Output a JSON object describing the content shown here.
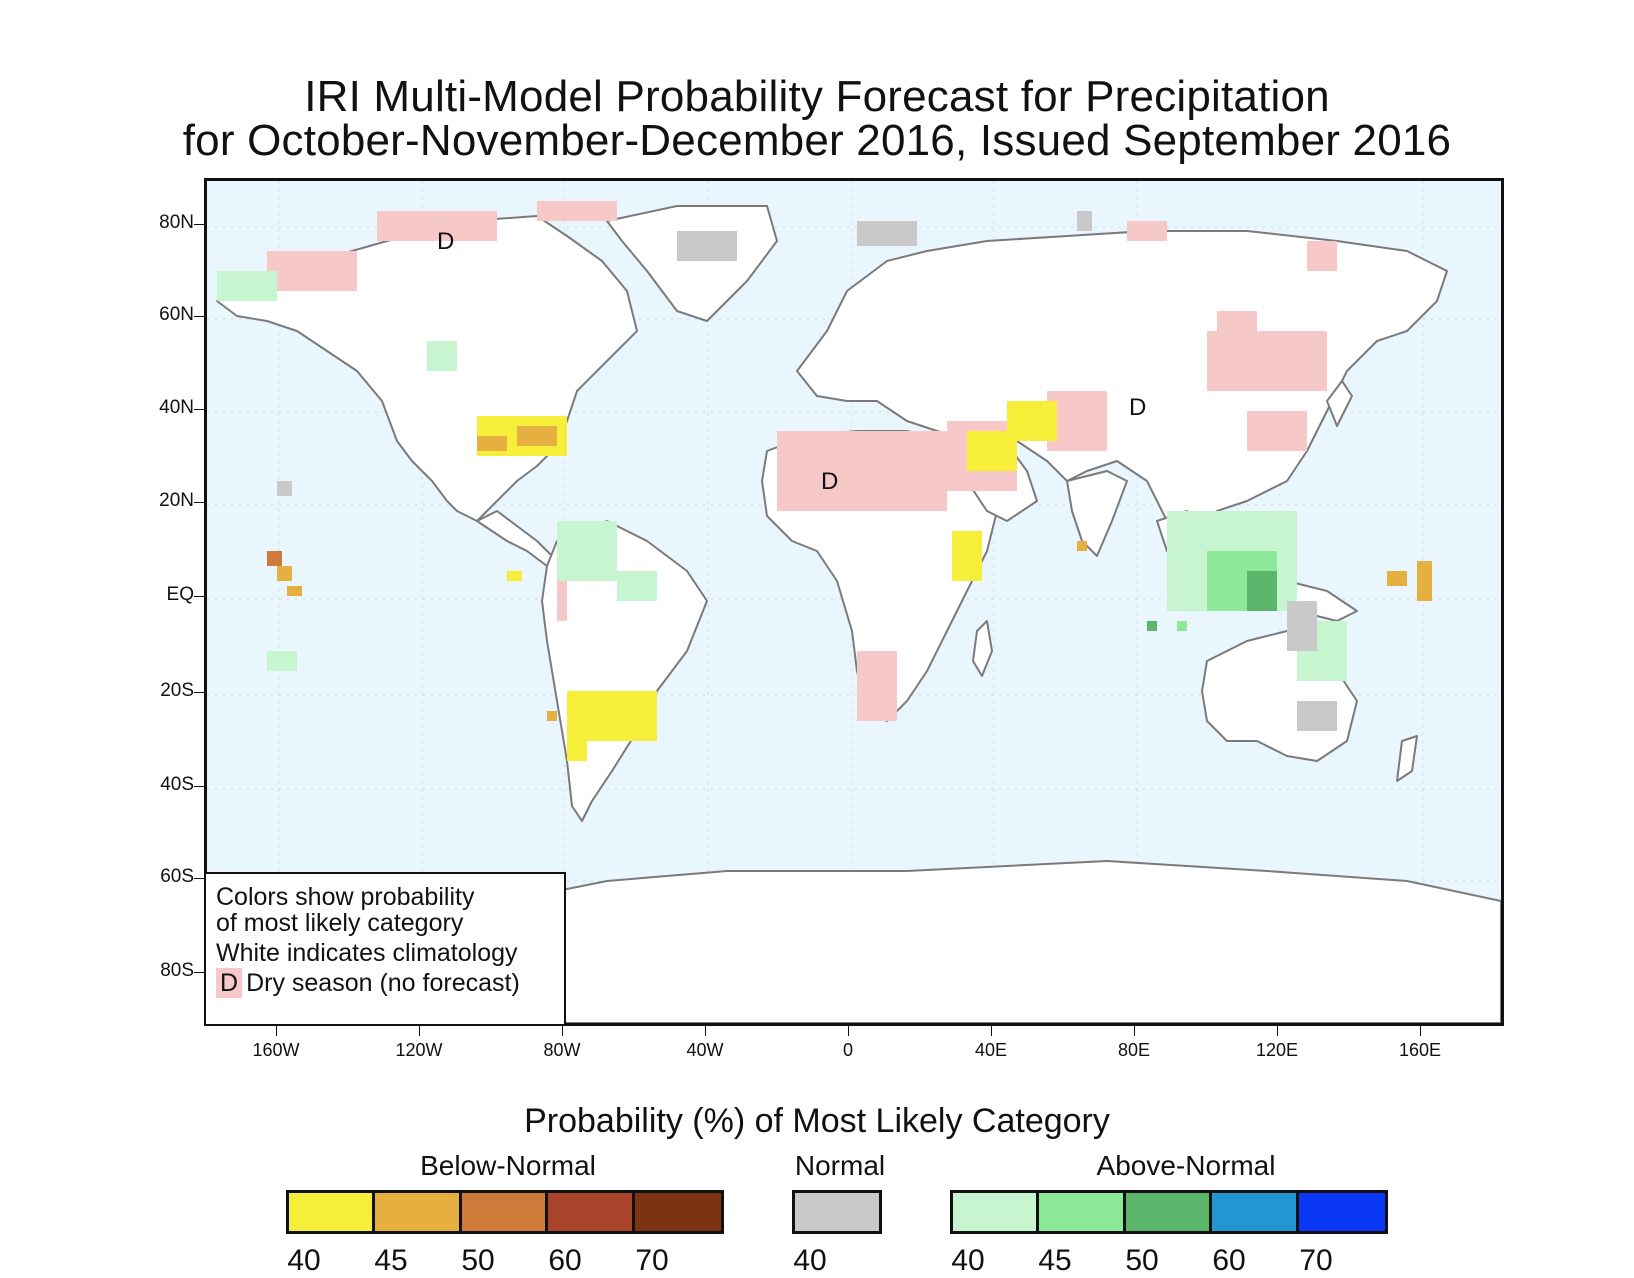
{
  "title": {
    "line1": "IRI Multi-Model Probability Forecast for Precipitation",
    "line2": "for October-November-December 2016, Issued September 2016"
  },
  "axes": {
    "lat_labels": [
      "80N",
      "60N",
      "40N",
      "20N",
      "EQ",
      "20S",
      "40S",
      "60S",
      "80S"
    ],
    "lon_labels": [
      "160W",
      "120W",
      "80W",
      "40W",
      "0",
      "40E",
      "80E",
      "120E",
      "160E"
    ]
  },
  "map_legend": {
    "line1": "Colors show probability",
    "line2": "of most likely category",
    "line3": "White indicates climatology",
    "d_symbol": "D",
    "d_text": "Dry season (no forecast)"
  },
  "dry_markers": [
    "D",
    "D",
    "D"
  ],
  "colorbar": {
    "title": "Probability (%) of Most Likely Category",
    "groups": [
      {
        "label": "Below-Normal",
        "colors": [
          "#f7ee3a",
          "#e5b040",
          "#cd7a3a",
          "#a9442b",
          "#7b3312"
        ],
        "ticks": [
          "40",
          "45",
          "50",
          "60",
          "70"
        ]
      },
      {
        "label": "Normal",
        "colors": [
          "#c9c9c9"
        ],
        "ticks": [
          "40"
        ]
      },
      {
        "label": "Above-Normal",
        "colors": [
          "#c6f5cf",
          "#8ee89a",
          "#5bb56a",
          "#2196d0",
          "#0a36f5"
        ],
        "ticks": [
          "40",
          "45",
          "50",
          "60",
          "70"
        ]
      }
    ]
  },
  "colors": {
    "ocean": "#eaf6fd",
    "land": "#ffffff",
    "dry_season": "#f7c8c8",
    "coastline": "#7a7a7a"
  }
}
